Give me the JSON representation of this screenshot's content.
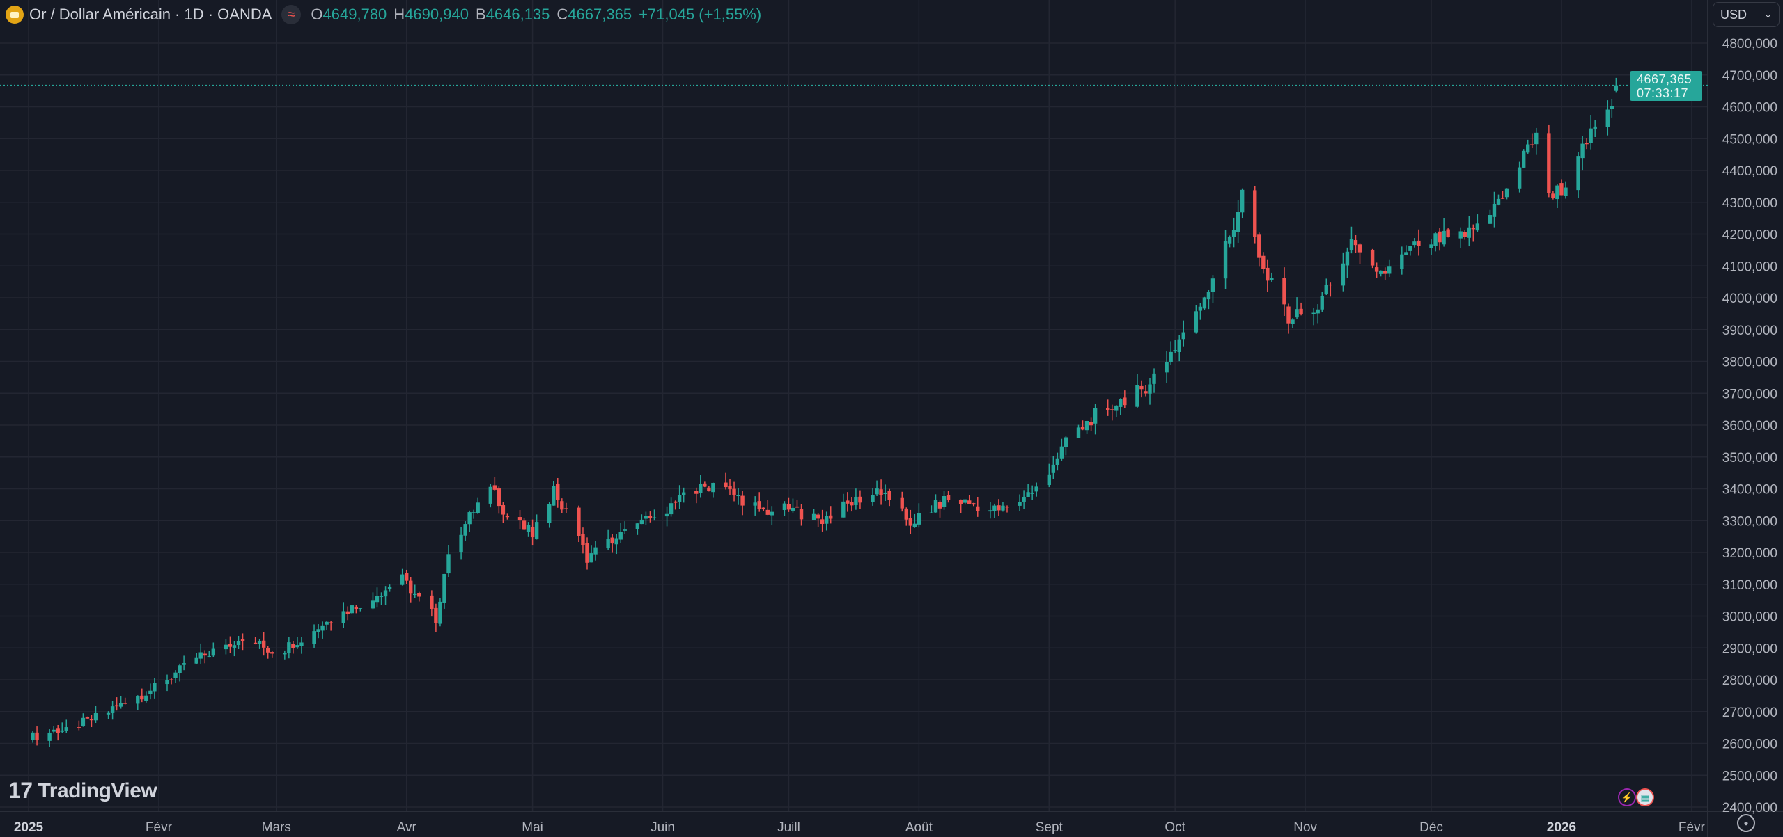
{
  "header": {
    "symbol_title": "Or / Dollar Américain · 1D · OANDA",
    "open_label": "O",
    "open": "4649,780",
    "high_label": "H",
    "high": "4690,940",
    "low_label": "B",
    "low": "4646,135",
    "close_label": "C",
    "close": "4667,365",
    "change": "+71,045 (+1,55%)"
  },
  "currency_select": {
    "value": "USD"
  },
  "last_price": {
    "price": "4667,365",
    "countdown": "07:33:17",
    "value": 4667.365
  },
  "branding": {
    "logo_text": "TradingView"
  },
  "colors": {
    "background": "#161a25",
    "grid": "#232632",
    "up": "#26a69a",
    "down": "#ef5350",
    "axis_text": "#b2b5be"
  },
  "chart_data": {
    "type": "candlestick",
    "title": "Or / Dollar Américain · 1D · OANDA",
    "ylim": [
      2400,
      4800
    ],
    "y_ticks": [
      {
        "value": 4800,
        "label": "4800,000"
      },
      {
        "value": 4700,
        "label": "4700,000"
      },
      {
        "value": 4600,
        "label": "4600,000"
      },
      {
        "value": 4500,
        "label": "4500,000"
      },
      {
        "value": 4400,
        "label": "4400,000"
      },
      {
        "value": 4300,
        "label": "4300,000"
      },
      {
        "value": 4200,
        "label": "4200,000"
      },
      {
        "value": 4100,
        "label": "4100,000"
      },
      {
        "value": 4000,
        "label": "4000,000"
      },
      {
        "value": 3900,
        "label": "3900,000"
      },
      {
        "value": 3800,
        "label": "3800,000"
      },
      {
        "value": 3700,
        "label": "3700,000"
      },
      {
        "value": 3600,
        "label": "3600,000"
      },
      {
        "value": 3500,
        "label": "3500,000"
      },
      {
        "value": 3400,
        "label": "3400,000"
      },
      {
        "value": 3300,
        "label": "3300,000"
      },
      {
        "value": 3200,
        "label": "3200,000"
      },
      {
        "value": 3100,
        "label": "3100,000"
      },
      {
        "value": 3000,
        "label": "3000,000"
      },
      {
        "value": 2900,
        "label": "2900,000"
      },
      {
        "value": 2800,
        "label": "2800,000"
      },
      {
        "value": 2700,
        "label": "2700,000"
      },
      {
        "value": 2600,
        "label": "2600,000"
      },
      {
        "value": 2500,
        "label": "2500,000"
      },
      {
        "value": 2400,
        "label": "2400,000"
      }
    ],
    "x_ticks": [
      {
        "day": 0,
        "label": "2025",
        "bold": true
      },
      {
        "day": 31,
        "label": "Févr"
      },
      {
        "day": 59,
        "label": "Mars"
      },
      {
        "day": 90,
        "label": "Avr"
      },
      {
        "day": 120,
        "label": "Mai"
      },
      {
        "day": 151,
        "label": "Juin"
      },
      {
        "day": 181,
        "label": "Juill"
      },
      {
        "day": 212,
        "label": "Août"
      },
      {
        "day": 243,
        "label": "Sept"
      },
      {
        "day": 273,
        "label": "Oct"
      },
      {
        "day": 304,
        "label": "Nov"
      },
      {
        "day": 334,
        "label": "Déc"
      },
      {
        "day": 365,
        "label": "2026",
        "bold": true
      },
      {
        "day": 396,
        "label": "Févr"
      }
    ],
    "x_unit": "days since 2025-01-01",
    "close_anchors": [
      [
        1,
        2621
      ],
      [
        14,
        2668
      ],
      [
        30,
        2775
      ],
      [
        40,
        2865
      ],
      [
        51,
        2935
      ],
      [
        59,
        2882
      ],
      [
        72,
        2990
      ],
      [
        89,
        3115
      ],
      [
        97,
        2990
      ],
      [
        100,
        3204
      ],
      [
        110,
        3418
      ],
      [
        114,
        3311
      ],
      [
        120,
        3257
      ],
      [
        125,
        3400
      ],
      [
        133,
        3186
      ],
      [
        139,
        3240
      ],
      [
        149,
        3311
      ],
      [
        155,
        3364
      ],
      [
        163,
        3418
      ],
      [
        175,
        3330
      ],
      [
        181,
        3336
      ],
      [
        189,
        3304
      ],
      [
        202,
        3400
      ],
      [
        210,
        3293
      ],
      [
        219,
        3371
      ],
      [
        231,
        3330
      ],
      [
        240,
        3400
      ],
      [
        247,
        3543
      ],
      [
        254,
        3632
      ],
      [
        266,
        3721
      ],
      [
        273,
        3846
      ],
      [
        280,
        4007
      ],
      [
        287,
        4221
      ],
      [
        289,
        4346
      ],
      [
        293,
        4114
      ],
      [
        300,
        3936
      ],
      [
        307,
        3971
      ],
      [
        316,
        4186
      ],
      [
        321,
        4061
      ],
      [
        331,
        4168
      ],
      [
        343,
        4204
      ],
      [
        352,
        4329
      ],
      [
        359,
        4525
      ],
      [
        362,
        4329
      ],
      [
        366,
        4346
      ],
      [
        371,
        4489
      ],
      [
        376,
        4596
      ],
      [
        377,
        4607
      ],
      [
        378,
        4667.365
      ]
    ],
    "last_candle": {
      "day": 378,
      "open": 4649.78,
      "high": 4690.94,
      "low": 4646.135,
      "close": 4667.365
    }
  }
}
